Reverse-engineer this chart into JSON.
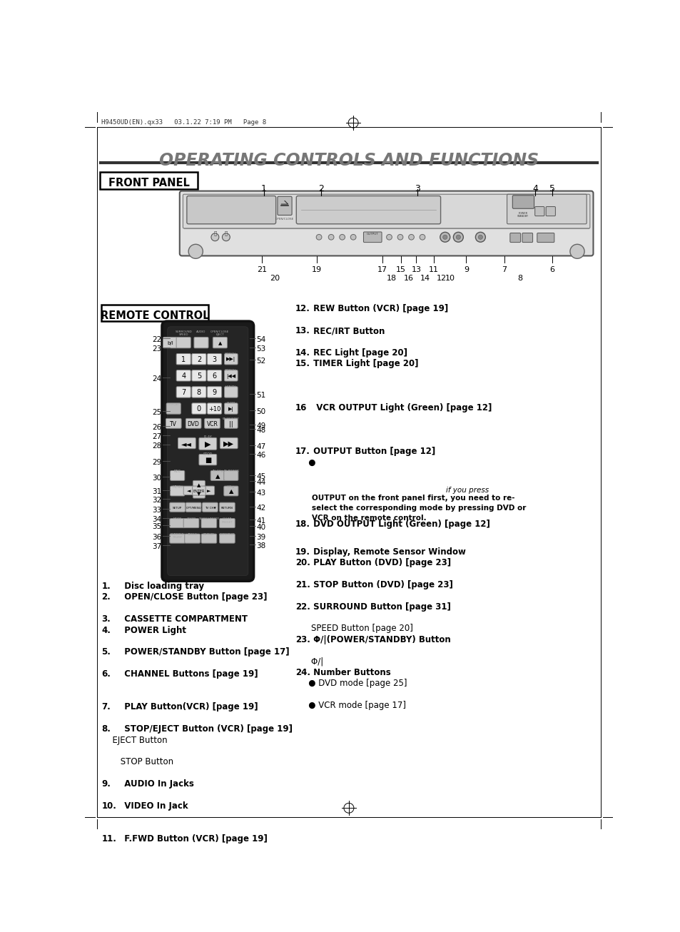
{
  "page_header": "H9450UD(EN).qx33   03.1.22 7:19 PM   Page 8",
  "title": "OPERATING CONTROLS AND FUNCTIONS",
  "front_panel_label": "FRONT PANEL",
  "remote_control_label": "REMOTE CONTROL",
  "bg_color": "#ffffff",
  "title_color": "#888888",
  "fp_numbers_top": [
    {
      "n": "1",
      "xr": 0.195
    },
    {
      "n": "2",
      "xr": 0.33
    },
    {
      "n": "3",
      "xr": 0.57
    },
    {
      "n": "4",
      "xr": 0.865
    },
    {
      "n": "5",
      "xr": 0.905
    }
  ],
  "fp_numbers_bottom_row1": [
    {
      "n": "21",
      "xr": 0.195
    },
    {
      "n": "19",
      "xr": 0.33
    },
    {
      "n": "17",
      "xr": 0.49
    },
    {
      "n": "15",
      "xr": 0.535
    },
    {
      "n": "13",
      "xr": 0.575
    },
    {
      "n": "11",
      "xr": 0.62
    },
    {
      "n": "9",
      "xr": 0.7
    },
    {
      "n": "7",
      "xr": 0.795
    },
    {
      "n": "6",
      "xr": 0.905
    }
  ],
  "fp_numbers_bottom_row2": [
    {
      "n": "20",
      "xr": 0.23
    },
    {
      "n": "18",
      "xr": 0.515
    },
    {
      "n": "16",
      "xr": 0.557
    },
    {
      "n": "14",
      "xr": 0.597
    },
    {
      "n": "12",
      "xr": 0.638
    },
    {
      "n": "10",
      "xr": 0.66
    },
    {
      "n": "8",
      "xr": 0.83
    }
  ]
}
